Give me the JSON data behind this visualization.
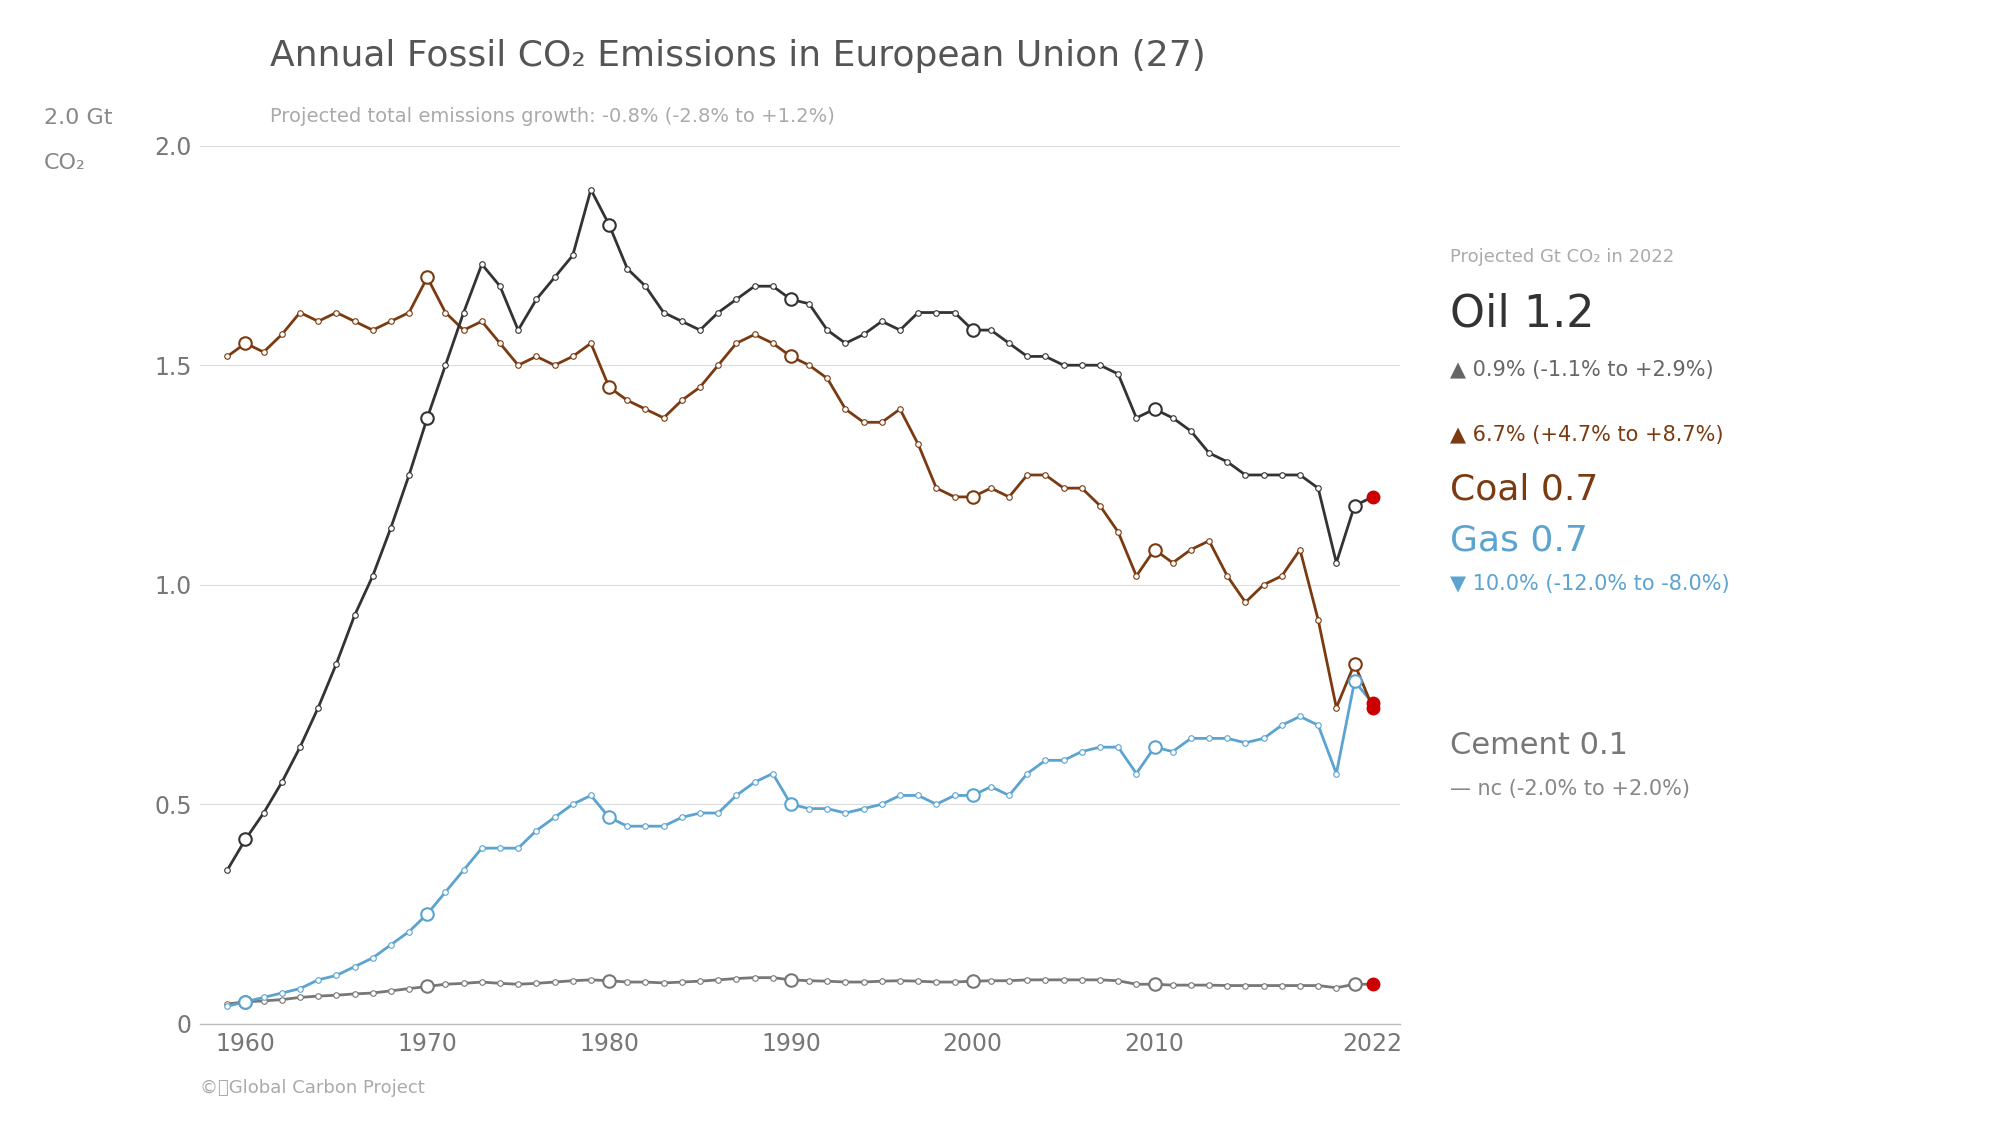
{
  "title": "Annual Fossil CO₂ Emissions in European Union (27)",
  "subtitle": "Projected total emissions growth: -0.8% (-2.8% to +1.2%)",
  "watermark": "©ⓘGlobal Carbon Project",
  "legend_header": "Projected Gt CO₂ in 2022",
  "background_color": "#ffffff",
  "grid_color": "#dddddd",
  "title_color": "#555555",
  "subtitle_color": "#aaaaaa",
  "years": [
    1959,
    1960,
    1961,
    1962,
    1963,
    1964,
    1965,
    1966,
    1967,
    1968,
    1969,
    1970,
    1971,
    1972,
    1973,
    1974,
    1975,
    1976,
    1977,
    1978,
    1979,
    1980,
    1981,
    1982,
    1983,
    1984,
    1985,
    1986,
    1987,
    1988,
    1989,
    1990,
    1991,
    1992,
    1993,
    1994,
    1995,
    1996,
    1997,
    1998,
    1999,
    2000,
    2001,
    2002,
    2003,
    2004,
    2005,
    2006,
    2007,
    2008,
    2009,
    2010,
    2011,
    2012,
    2013,
    2014,
    2015,
    2016,
    2017,
    2018,
    2019,
    2020,
    2021,
    2022
  ],
  "oil": [
    0.35,
    0.42,
    0.48,
    0.55,
    0.63,
    0.72,
    0.82,
    0.93,
    1.02,
    1.13,
    1.25,
    1.38,
    1.5,
    1.62,
    1.73,
    1.68,
    1.58,
    1.65,
    1.7,
    1.75,
    1.9,
    1.82,
    1.72,
    1.68,
    1.62,
    1.6,
    1.58,
    1.62,
    1.65,
    1.68,
    1.68,
    1.65,
    1.64,
    1.58,
    1.55,
    1.57,
    1.6,
    1.58,
    1.62,
    1.62,
    1.62,
    1.58,
    1.58,
    1.55,
    1.52,
    1.52,
    1.5,
    1.5,
    1.5,
    1.48,
    1.38,
    1.4,
    1.38,
    1.35,
    1.3,
    1.28,
    1.25,
    1.25,
    1.25,
    1.25,
    1.22,
    1.05,
    1.18,
    1.2
  ],
  "coal": [
    1.52,
    1.55,
    1.53,
    1.57,
    1.62,
    1.6,
    1.62,
    1.6,
    1.58,
    1.6,
    1.62,
    1.7,
    1.62,
    1.58,
    1.6,
    1.55,
    1.5,
    1.52,
    1.5,
    1.52,
    1.55,
    1.45,
    1.42,
    1.4,
    1.38,
    1.42,
    1.45,
    1.5,
    1.55,
    1.57,
    1.55,
    1.52,
    1.5,
    1.47,
    1.4,
    1.37,
    1.37,
    1.4,
    1.32,
    1.22,
    1.2,
    1.2,
    1.22,
    1.2,
    1.25,
    1.25,
    1.22,
    1.22,
    1.18,
    1.12,
    1.02,
    1.08,
    1.05,
    1.08,
    1.1,
    1.02,
    0.96,
    1.0,
    1.02,
    1.08,
    0.92,
    0.72,
    0.82,
    0.72
  ],
  "gas": [
    0.04,
    0.05,
    0.06,
    0.07,
    0.08,
    0.1,
    0.11,
    0.13,
    0.15,
    0.18,
    0.21,
    0.25,
    0.3,
    0.35,
    0.4,
    0.4,
    0.4,
    0.44,
    0.47,
    0.5,
    0.52,
    0.47,
    0.45,
    0.45,
    0.45,
    0.47,
    0.48,
    0.48,
    0.52,
    0.55,
    0.57,
    0.5,
    0.49,
    0.49,
    0.48,
    0.49,
    0.5,
    0.52,
    0.52,
    0.5,
    0.52,
    0.52,
    0.54,
    0.52,
    0.57,
    0.6,
    0.6,
    0.62,
    0.63,
    0.63,
    0.57,
    0.63,
    0.62,
    0.65,
    0.65,
    0.65,
    0.64,
    0.65,
    0.68,
    0.7,
    0.68,
    0.57,
    0.78,
    0.73
  ],
  "cement": [
    0.045,
    0.05,
    0.052,
    0.055,
    0.06,
    0.063,
    0.065,
    0.068,
    0.07,
    0.075,
    0.08,
    0.085,
    0.09,
    0.092,
    0.095,
    0.092,
    0.09,
    0.092,
    0.095,
    0.098,
    0.1,
    0.098,
    0.095,
    0.095,
    0.093,
    0.095,
    0.097,
    0.1,
    0.103,
    0.105,
    0.105,
    0.1,
    0.098,
    0.097,
    0.095,
    0.095,
    0.097,
    0.098,
    0.097,
    0.095,
    0.095,
    0.097,
    0.098,
    0.098,
    0.1,
    0.1,
    0.1,
    0.1,
    0.1,
    0.098,
    0.09,
    0.09,
    0.088,
    0.088,
    0.088,
    0.087,
    0.087,
    0.087,
    0.087,
    0.087,
    0.087,
    0.082,
    0.09,
    0.09
  ],
  "oil_color": "#333333",
  "coal_color": "#7B3A10",
  "gas_color": "#5ba3d0",
  "cement_color": "#777777",
  "red_dot_color": "#cc0000",
  "circle_years": [
    1960,
    1970,
    1980,
    1990,
    2000,
    2010
  ],
  "xlim": [
    1957.5,
    2023.5
  ],
  "ylim": [
    0,
    2.05
  ],
  "yticks": [
    0,
    0.5,
    1.0,
    1.5,
    2.0
  ],
  "xticks": [
    1960,
    1970,
    1980,
    1990,
    2000,
    2010,
    2022
  ]
}
